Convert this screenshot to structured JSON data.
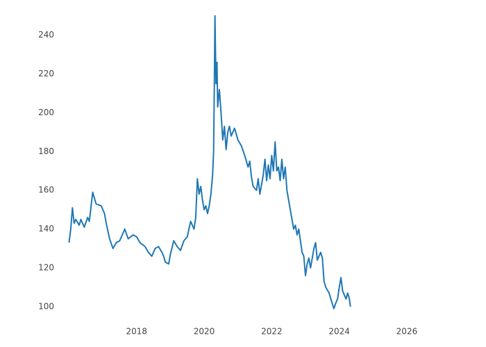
{
  "chart_data": {
    "type": "line",
    "color": "#1f77b4",
    "x": [
      2016.0,
      2016.05,
      2016.1,
      2016.15,
      2016.2,
      2016.3,
      2016.35,
      2016.45,
      2016.55,
      2016.6,
      2016.7,
      2016.8,
      2016.95,
      2017.05,
      2017.1,
      2017.2,
      2017.3,
      2017.4,
      2017.5,
      2017.65,
      2017.75,
      2017.9,
      2018.0,
      2018.1,
      2018.25,
      2018.35,
      2018.45,
      2018.55,
      2018.65,
      2018.75,
      2018.8,
      2018.85,
      2018.95,
      2019.0,
      2019.1,
      2019.2,
      2019.3,
      2019.4,
      2019.5,
      2019.6,
      2019.7,
      2019.75,
      2019.8,
      2019.85,
      2019.9,
      2019.95,
      2020.0,
      2020.05,
      2020.1,
      2020.15,
      2020.2,
      2020.25,
      2020.28,
      2020.3,
      2020.32,
      2020.35,
      2020.38,
      2020.4,
      2020.45,
      2020.5,
      2020.55,
      2020.6,
      2020.65,
      2020.7,
      2020.75,
      2020.8,
      2020.9,
      2021.0,
      2021.1,
      2021.2,
      2021.3,
      2021.35,
      2021.4,
      2021.45,
      2021.55,
      2021.6,
      2021.65,
      2021.75,
      2021.8,
      2021.85,
      2021.9,
      2021.95,
      2022.0,
      2022.05,
      2022.1,
      2022.15,
      2022.2,
      2022.25,
      2022.3,
      2022.35,
      2022.4,
      2022.45,
      2022.5,
      2022.55,
      2022.6,
      2022.65,
      2022.7,
      2022.75,
      2022.8,
      2022.85,
      2022.9,
      2022.95,
      2023.0,
      2023.05,
      2023.1,
      2023.15,
      2023.25,
      2023.3,
      2023.35,
      2023.45,
      2023.5,
      2023.55,
      2023.6,
      2023.7,
      2023.75,
      2023.84,
      2023.9,
      2023.95,
      2024.0,
      2024.05,
      2024.1,
      2024.15,
      2024.2,
      2024.25,
      2024.3,
      2024.33
    ],
    "values": [
      133,
      140,
      151,
      143,
      145,
      142,
      145,
      141,
      146,
      144,
      159,
      153,
      152,
      148,
      143,
      135,
      130,
      133,
      134,
      140,
      135,
      137,
      136,
      133,
      131,
      128,
      126,
      130,
      131,
      128,
      126,
      123,
      122,
      127,
      134,
      131,
      129,
      134,
      136,
      144,
      140,
      146,
      166,
      158,
      162,
      155,
      150,
      152,
      148,
      152,
      158,
      168,
      180,
      212,
      250,
      215,
      226,
      203,
      212,
      200,
      186,
      193,
      181,
      190,
      193,
      188,
      192,
      186,
      183,
      178,
      172,
      175,
      167,
      162,
      160,
      166,
      158,
      168,
      176,
      165,
      173,
      166,
      178,
      170,
      185,
      170,
      172,
      165,
      176,
      166,
      172,
      160,
      155,
      150,
      145,
      140,
      142,
      137,
      140,
      134,
      128,
      126,
      116,
      122,
      125,
      120,
      130,
      133,
      124,
      128,
      125,
      113,
      110,
      107,
      104,
      99,
      102,
      104,
      110,
      115,
      108,
      106,
      104,
      107,
      104,
      100
    ],
    "xlim": [
      2015.6,
      2026.7
    ],
    "ylim": [
      93.5,
      251
    ],
    "xticks": [
      2018,
      2020,
      2022,
      2024,
      2026
    ],
    "yticks": [
      100,
      120,
      140,
      160,
      180,
      200,
      220,
      240
    ]
  }
}
